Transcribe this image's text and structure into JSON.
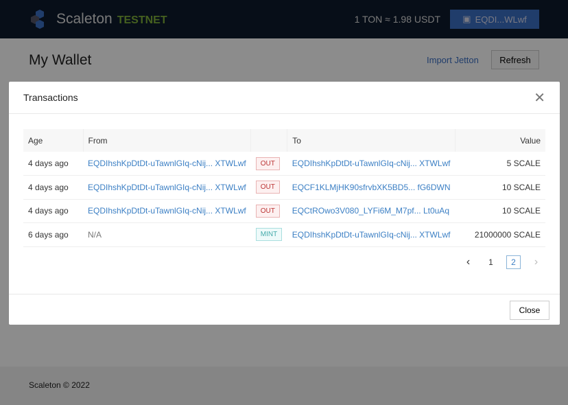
{
  "header": {
    "brand": "Scaleton",
    "network": "TESTNET",
    "rate": "1 TON ≈ 1.98 USDT",
    "wallet": "EQDI...WLwf"
  },
  "page": {
    "title": "My Wallet",
    "import": "Import Jetton",
    "refresh": "Refresh"
  },
  "footer": {
    "text": "Scaleton © 2022"
  },
  "modal": {
    "title": "Transactions",
    "close": "Close",
    "columns": {
      "age": "Age",
      "from": "From",
      "to": "To",
      "value": "Value"
    },
    "rows": [
      {
        "age": "4 days ago",
        "from": "EQDIhshKpDtDt-uTawnlGIq-cNij...",
        "from_end": "XTWLwf",
        "type": "OUT",
        "to": "EQDIhshKpDtDt-uTawnlGIq-cNij...",
        "to_end": "XTWLwf",
        "value": "5 SCALE"
      },
      {
        "age": "4 days ago",
        "from": "EQDIhshKpDtDt-uTawnlGIq-cNij...",
        "from_end": "XTWLwf",
        "type": "OUT",
        "to": "EQCF1KLMjHK90sfrvbXK5BD5...",
        "to_end": "fG6DWN",
        "value": "10 SCALE"
      },
      {
        "age": "4 days ago",
        "from": "EQDIhshKpDtDt-uTawnlGIq-cNij...",
        "from_end": "XTWLwf",
        "type": "OUT",
        "to": "EQCtROwo3V080_LYFi6M_M7pf...",
        "to_end": "Lt0uAq",
        "value": "10 SCALE"
      },
      {
        "age": "6 days ago",
        "from": "N/A",
        "from_end": "",
        "type": "MINT",
        "to": "EQDIhshKpDtDt-uTawnlGIq-cNij...",
        "to_end": "XTWLwf",
        "value": "21000000 SCALE"
      }
    ],
    "pagination": {
      "prev": "‹",
      "pages": [
        "1",
        "2"
      ],
      "current": "2",
      "next": "›"
    }
  }
}
